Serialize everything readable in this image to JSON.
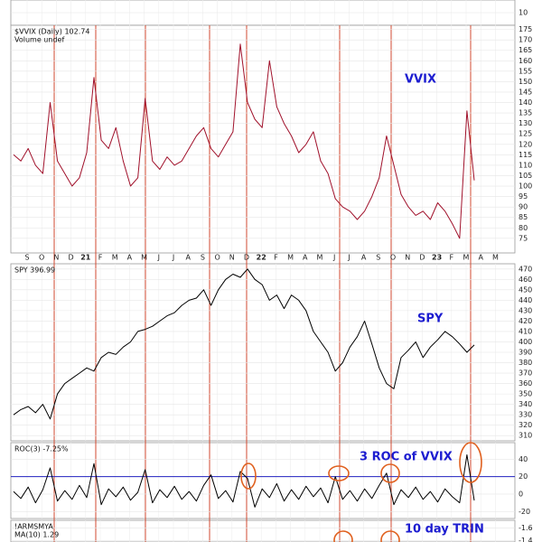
{
  "chart_data": [
    {
      "type": "line",
      "ylim": [
        0,
        20
      ],
      "yticks": [
        10
      ],
      "series": []
    },
    {
      "type": "line",
      "title": "$VVIX (Daily) 102.74",
      "subtitle": "Volume undef",
      "annotation": "VVIX",
      "ylim": [
        68,
        177
      ],
      "yticks": [
        75,
        80,
        85,
        90,
        95,
        100,
        105,
        110,
        115,
        120,
        125,
        130,
        135,
        140,
        145,
        150,
        155,
        160,
        165,
        170,
        175
      ],
      "x_labels": [
        "S",
        "O",
        "N",
        "D",
        "21",
        "F",
        "M",
        "A",
        "M",
        "J",
        "J",
        "A",
        "S",
        "O",
        "N",
        "D",
        "22",
        "F",
        "M",
        "A",
        "M",
        "J",
        "J",
        "A",
        "S",
        "O",
        "N",
        "D",
        "23",
        "F",
        "M",
        "A",
        "M"
      ],
      "series": [
        {
          "name": "$VVIX",
          "color": "#a0102a",
          "values": [
            115,
            112,
            118,
            110,
            106,
            140,
            112,
            106,
            100,
            104,
            116,
            152,
            122,
            118,
            128,
            112,
            100,
            104,
            142,
            112,
            108,
            114,
            110,
            112,
            118,
            124,
            128,
            118,
            114,
            120,
            126,
            168,
            140,
            132,
            128,
            160,
            138,
            130,
            124,
            116,
            120,
            126,
            112,
            106,
            94,
            90,
            88,
            84,
            88,
            95,
            104,
            124,
            110,
            96,
            90,
            86,
            88,
            84,
            92,
            88,
            82,
            75,
            136,
            102.74
          ]
        }
      ]
    },
    {
      "type": "line",
      "title": "SPY 396.99",
      "annotation": "SPY",
      "ylim": [
        305,
        475
      ],
      "yticks": [
        310,
        320,
        330,
        340,
        350,
        360,
        370,
        380,
        390,
        400,
        410,
        420,
        430,
        440,
        450,
        460,
        470
      ],
      "series": [
        {
          "name": "SPY",
          "color": "#000000",
          "values": [
            330,
            335,
            338,
            332,
            340,
            326,
            350,
            360,
            365,
            370,
            375,
            372,
            385,
            390,
            388,
            395,
            400,
            410,
            412,
            415,
            420,
            425,
            428,
            435,
            440,
            442,
            450,
            435,
            450,
            460,
            465,
            462,
            470,
            460,
            455,
            440,
            445,
            432,
            445,
            440,
            430,
            410,
            400,
            390,
            372,
            380,
            395,
            405,
            420,
            398,
            375,
            360,
            355,
            385,
            392,
            400,
            385,
            395,
            402,
            410,
            405,
            398,
            390,
            396.99
          ]
        }
      ]
    },
    {
      "type": "line",
      "title": "ROC(3) -7.25%",
      "annotation": "3 ROC of VVIX",
      "ylim": [
        -28,
        59
      ],
      "yticks": [
        40,
        20,
        0,
        -20
      ],
      "ref_line": 20,
      "series": [
        {
          "name": "ROC(3)",
          "color": "#000000",
          "values": [
            3,
            -5,
            8,
            -10,
            5,
            30,
            -8,
            4,
            -6,
            10,
            -4,
            35,
            -12,
            6,
            -3,
            8,
            -7,
            2,
            28,
            -10,
            5,
            -4,
            9,
            -6,
            3,
            -8,
            10,
            22,
            -5,
            4,
            -9,
            26,
            18,
            -15,
            6,
            -4,
            12,
            -8,
            5,
            -6,
            9,
            -3,
            7,
            -10,
            20,
            -6,
            4,
            -8,
            6,
            -5,
            10,
            24,
            -12,
            5,
            -4,
            8,
            -6,
            3,
            -9,
            6,
            -3,
            -10,
            45,
            -7.25
          ]
        }
      ]
    },
    {
      "type": "line",
      "title": "!ARMSMYA",
      "subtitle": "MA(10) 1.29",
      "annotation": "10 day TRIN",
      "ylim": [
        -1.38,
        -1.72
      ],
      "yticks": [
        -1.6,
        -1.4
      ],
      "series": []
    }
  ]
}
